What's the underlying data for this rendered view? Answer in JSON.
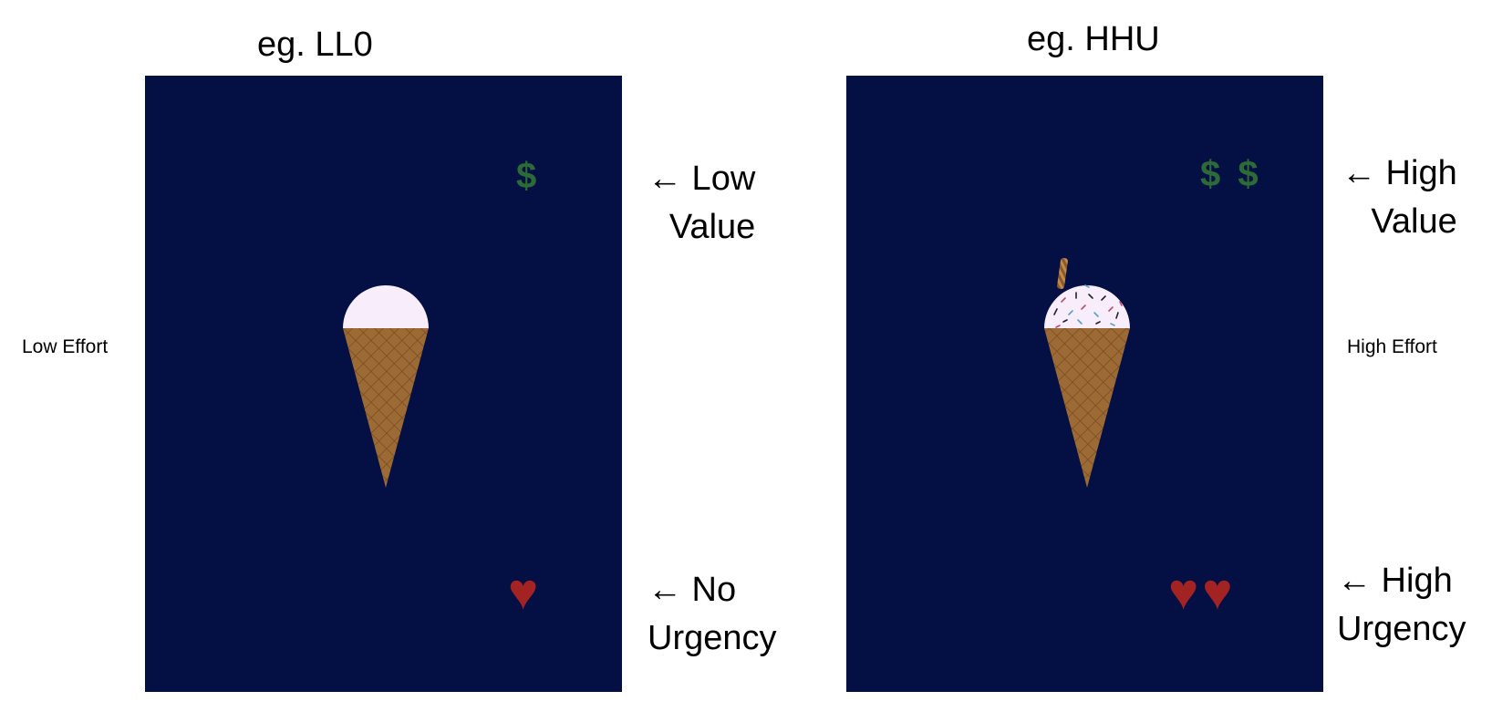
{
  "left": {
    "title": "eg. LL0",
    "value_symbol": "$",
    "urgency_symbol": "♥",
    "value_label_line1": "← Low",
    "value_label_line2": "Value",
    "urgency_label_line1": "← No",
    "urgency_label_line2": "Urgency",
    "effort_label": "Low Effort"
  },
  "right": {
    "title": "eg. HHU",
    "value_symbol": "$ $",
    "urgency_symbol": "♥♥",
    "value_label_line1": "← High",
    "value_label_line2": "Value",
    "urgency_label_line1": "← High",
    "urgency_label_line2": "Urgency",
    "effort_label": "High Effort"
  },
  "colors": {
    "panel_background": "#040f43",
    "money": "#2c6b37",
    "heart": "#a32322",
    "scoop": "#f8edfb",
    "cone": "#9c6a34",
    "cone_lines": "#7a4a20"
  }
}
